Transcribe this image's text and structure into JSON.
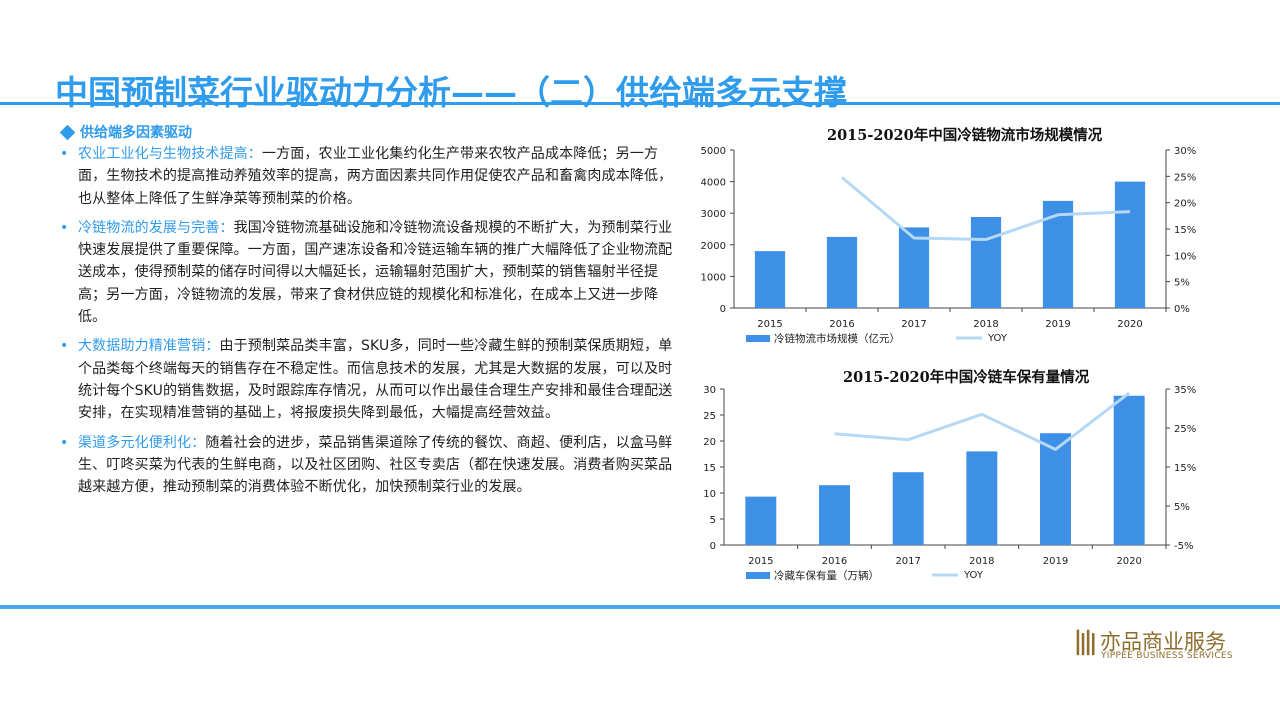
{
  "page": {
    "title": "中国预制菜行业驱动力分析——（二）供给端多元支撑",
    "section_head": "供给端多因素驱动"
  },
  "bullets": [
    {
      "lead": "农业工业化与生物技术提高：",
      "text": "一方面，农业工业化集约化生产带来农牧产品成本降低；另一方面，生物技术的提高推动养殖效率的提高，两方面因素共同作用促使农产品和畜禽肉成本降低，也从整体上降低了生鲜净菜等预制菜的价格。"
    },
    {
      "lead": "冷链物流的发展与完善：",
      "text": "我国冷链物流基础设施和冷链物流设备规模的不断扩大，为预制菜行业快速发展提供了重要保障。一方面，国产速冻设备和冷链运输车辆的推广大幅降低了企业物流配送成本，使得预制菜的储存时间得以大幅延长，运输辐射范围扩大，预制菜的销售辐射半径提高；另一方面，冷链物流的发展，带来了食材供应链的规模化和标准化，在成本上又进一步降低。"
    },
    {
      "lead": "大数据助力精准营销：",
      "text": "由于预制菜品类丰富，SKU多，同时一些冷藏生鲜的预制菜保质期短，单个品类每个终端每天的销售存在不稳定性。而信息技术的发展，尤其是大数据的发展，可以及时统计每个SKU的销售数据，及时跟踪库存情况，从而可以作出最佳合理生产安排和最佳合理配送安排，在实现精准营销的基础上，将报废损失降到最低，大幅提高经营效益。"
    },
    {
      "lead": "渠道多元化便利化：",
      "text": "随着社会的进步，菜品销售渠道除了传统的餐饮、商超、便利店，以盒马鲜生、叮咚买菜为代表的生鲜电商，以及社区团购、社区专卖店（都在快速发展。消费者购买菜品越来越方便，推动预制菜的消费体验不断优化，加快预制菜行业的发展。"
    }
  ],
  "charts_text": {
    "c1_title": "2015-2020年中国冷链物流市场规模情况",
    "c1_bar_legend": "冷链物流市场规模（亿元）",
    "c1_line_legend": "YOY",
    "c2_title": "2015-2020年中国冷链车保有量情况",
    "c2_bar_legend": "冷藏车保有量（万辆）",
    "c2_line_legend": "YOY"
  },
  "chart_data": [
    {
      "type": "bar",
      "title": "2015-2020年中国冷链物流市场规模情况",
      "categories": [
        "2015",
        "2016",
        "2017",
        "2018",
        "2019",
        "2020"
      ],
      "series": [
        {
          "name": "冷链物流市场规模（亿元）",
          "type": "bar",
          "axis": "left",
          "values": [
            1800,
            2250,
            2550,
            2880,
            3390,
            4000
          ]
        },
        {
          "name": "YOY",
          "type": "line",
          "axis": "right",
          "values": [
            null,
            24.8,
            13.3,
            13.0,
            17.7,
            18.3
          ]
        }
      ],
      "ylim_left": [
        0,
        5000
      ],
      "yticks_left": [
        "0",
        "1000",
        "2000",
        "3000",
        "4000",
        "5000"
      ],
      "ylim_right": [
        0,
        30
      ],
      "yticks_right": [
        "0%",
        "5%",
        "10%",
        "15%",
        "20%",
        "25%",
        "30%"
      ],
      "colors": {
        "bar": "#3e8fe6",
        "line": "#b5d8f5"
      }
    },
    {
      "type": "bar",
      "title": "2015-2020年中国冷链车保有量情况",
      "categories": [
        "2015",
        "2016",
        "2017",
        "2018",
        "2019",
        "2020"
      ],
      "series": [
        {
          "name": "冷藏车保有量（万辆）",
          "type": "bar",
          "axis": "left",
          "values": [
            9.3,
            11.5,
            14.0,
            18.0,
            21.5,
            28.7
          ]
        },
        {
          "name": "YOY",
          "type": "line",
          "axis": "right",
          "values": [
            null,
            23.5,
            22.0,
            28.5,
            19.5,
            34.0
          ]
        }
      ],
      "ylim_left": [
        0,
        30
      ],
      "yticks_left": [
        "0",
        "5",
        "10",
        "15",
        "20",
        "25",
        "30"
      ],
      "ylim_right": [
        -5,
        35
      ],
      "yticks_right": [
        "-5%",
        "5%",
        "15%",
        "25%",
        "35%"
      ],
      "colors": {
        "bar": "#3e8fe6",
        "line": "#b5d8f5"
      }
    }
  ],
  "logo": {
    "cn": "亦品商业服务",
    "en": "YIPPEE BUSINESS SERVICES",
    "color": "#8f6d2d"
  }
}
